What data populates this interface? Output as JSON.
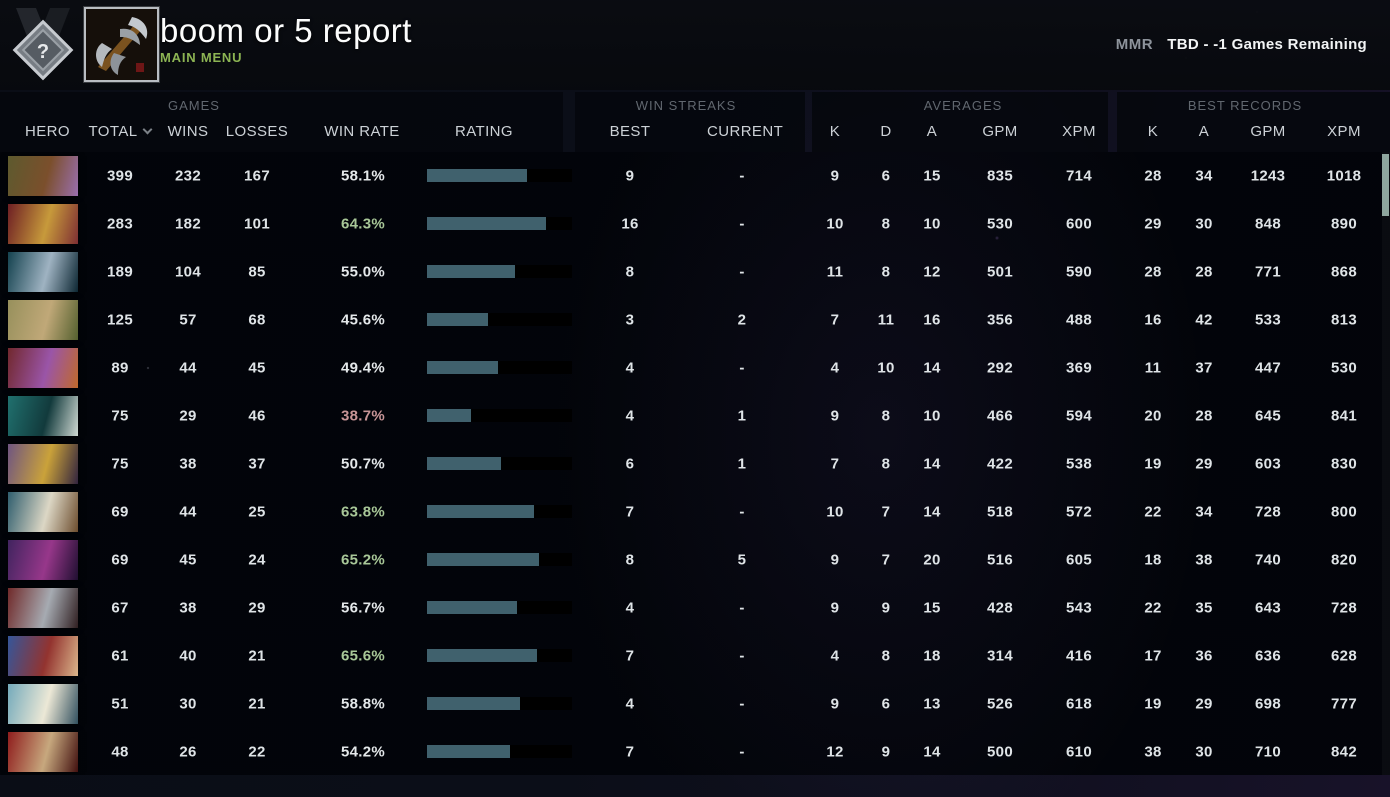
{
  "topbar": {
    "title": "boom or 5 report",
    "subtitle": "MAIN MENU",
    "rank_glyph": "?",
    "mmr_label": "MMR",
    "mmr_value": "TBD - -1 Games Remaining"
  },
  "header": {
    "groups": {
      "games": "GAMES",
      "streaks": "WIN STREAKS",
      "averages": "AVERAGES",
      "records": "BEST RECORDS"
    },
    "columns": {
      "hero": "HERO",
      "total": "TOTAL",
      "wins": "WINS",
      "losses": "LOSSES",
      "win_rate": "WIN RATE",
      "rating": "RATING",
      "best": "BEST",
      "current": "CURRENT",
      "k": "K",
      "d": "D",
      "a": "A",
      "gpm": "GPM",
      "xpm": "XPM"
    }
  },
  "colors": {
    "accent_green": "#8cb453",
    "bar_fill": "#40616d",
    "win_rate_good": "#a8c798",
    "win_rate_bad": "#c79597",
    "text": "#dfe4e7",
    "muted": "#61676f",
    "scroll_thumb": "#8ea69e"
  },
  "table": {
    "rows": [
      {
        "portrait": [
          "#5d5a2e",
          "#7b4f2c",
          "#9a6fae"
        ],
        "total": "399",
        "wins": "232",
        "losses": "167",
        "win_rate": "58.1%",
        "win_rate_tone": "neutral",
        "rating_fill": 0.69,
        "streak_best": "9",
        "streak_current": "-",
        "avg_k": "9",
        "avg_d": "6",
        "avg_a": "15",
        "avg_gpm": "835",
        "avg_xpm": "714",
        "rec_k": "28",
        "rec_a": "34",
        "rec_gpm": "1243",
        "rec_xpm": "1018"
      },
      {
        "portrait": [
          "#6e1f24",
          "#c79a3b",
          "#7e2f33"
        ],
        "total": "283",
        "wins": "182",
        "losses": "101",
        "win_rate": "64.3%",
        "win_rate_tone": "good",
        "rating_fill": 0.82,
        "streak_best": "16",
        "streak_current": "-",
        "avg_k": "10",
        "avg_d": "8",
        "avg_a": "10",
        "avg_gpm": "530",
        "avg_xpm": "600",
        "rec_k": "29",
        "rec_a": "30",
        "rec_gpm": "848",
        "rec_xpm": "890"
      },
      {
        "portrait": [
          "#14424f",
          "#9fb3c2",
          "#0d2733"
        ],
        "total": "189",
        "wins": "104",
        "losses": "85",
        "win_rate": "55.0%",
        "win_rate_tone": "neutral",
        "rating_fill": 0.61,
        "streak_best": "8",
        "streak_current": "-",
        "avg_k": "11",
        "avg_d": "8",
        "avg_a": "12",
        "avg_gpm": "501",
        "avg_xpm": "590",
        "rec_k": "28",
        "rec_a": "28",
        "rec_gpm": "771",
        "rec_xpm": "868"
      },
      {
        "portrait": [
          "#97905c",
          "#c0a878",
          "#55602f"
        ],
        "total": "125",
        "wins": "57",
        "losses": "68",
        "win_rate": "45.6%",
        "win_rate_tone": "neutral",
        "rating_fill": 0.42,
        "streak_best": "3",
        "streak_current": "2",
        "avg_k": "7",
        "avg_d": "11",
        "avg_a": "16",
        "avg_gpm": "356",
        "avg_xpm": "488",
        "rec_k": "16",
        "rec_a": "42",
        "rec_gpm": "533",
        "rec_xpm": "813"
      },
      {
        "portrait": [
          "#71282e",
          "#9a55a8",
          "#c06a2c"
        ],
        "total": "89",
        "wins": "44",
        "losses": "45",
        "win_rate": "49.4%",
        "win_rate_tone": "neutral",
        "rating_fill": 0.49,
        "streak_best": "4",
        "streak_current": "-",
        "avg_k": "4",
        "avg_d": "10",
        "avg_a": "14",
        "avg_gpm": "292",
        "avg_xpm": "369",
        "rec_k": "11",
        "rec_a": "37",
        "rec_gpm": "447",
        "rec_xpm": "530"
      },
      {
        "portrait": [
          "#20706e",
          "#123a3c",
          "#cfd8d2"
        ],
        "total": "75",
        "wins": "29",
        "losses": "46",
        "win_rate": "38.7%",
        "win_rate_tone": "bad",
        "rating_fill": 0.3,
        "streak_best": "4",
        "streak_current": "1",
        "avg_k": "9",
        "avg_d": "8",
        "avg_a": "10",
        "avg_gpm": "466",
        "avg_xpm": "594",
        "rec_k": "20",
        "rec_a": "28",
        "rec_gpm": "645",
        "rec_xpm": "841"
      },
      {
        "portrait": [
          "#6f5581",
          "#caa23a",
          "#32243e"
        ],
        "total": "75",
        "wins": "38",
        "losses": "37",
        "win_rate": "50.7%",
        "win_rate_tone": "neutral",
        "rating_fill": 0.51,
        "streak_best": "6",
        "streak_current": "1",
        "avg_k": "7",
        "avg_d": "8",
        "avg_a": "14",
        "avg_gpm": "422",
        "avg_xpm": "538",
        "rec_k": "19",
        "rec_a": "29",
        "rec_gpm": "603",
        "rec_xpm": "830"
      },
      {
        "portrait": [
          "#2f5e6e",
          "#dcd7c5",
          "#6d4d2e"
        ],
        "total": "69",
        "wins": "44",
        "losses": "25",
        "win_rate": "63.8%",
        "win_rate_tone": "good",
        "rating_fill": 0.74,
        "streak_best": "7",
        "streak_current": "-",
        "avg_k": "10",
        "avg_d": "7",
        "avg_a": "14",
        "avg_gpm": "518",
        "avg_xpm": "572",
        "rec_k": "22",
        "rec_a": "34",
        "rec_gpm": "728",
        "rec_xpm": "800"
      },
      {
        "portrait": [
          "#41245f",
          "#97378a",
          "#200f31"
        ],
        "total": "69",
        "wins": "45",
        "losses": "24",
        "win_rate": "65.2%",
        "win_rate_tone": "good",
        "rating_fill": 0.77,
        "streak_best": "8",
        "streak_current": "5",
        "avg_k": "9",
        "avg_d": "7",
        "avg_a": "20",
        "avg_gpm": "516",
        "avg_xpm": "605",
        "rec_k": "18",
        "rec_a": "38",
        "rec_gpm": "740",
        "rec_xpm": "820"
      },
      {
        "portrait": [
          "#702a2a",
          "#a6abb2",
          "#301f21"
        ],
        "total": "67",
        "wins": "38",
        "losses": "29",
        "win_rate": "56.7%",
        "win_rate_tone": "neutral",
        "rating_fill": 0.62,
        "streak_best": "4",
        "streak_current": "-",
        "avg_k": "9",
        "avg_d": "9",
        "avg_a": "15",
        "avg_gpm": "428",
        "avg_xpm": "543",
        "rec_k": "22",
        "rec_a": "35",
        "rec_gpm": "643",
        "rec_xpm": "728"
      },
      {
        "portrait": [
          "#35569a",
          "#93332f",
          "#dbb68c"
        ],
        "total": "61",
        "wins": "40",
        "losses": "21",
        "win_rate": "65.6%",
        "win_rate_tone": "good",
        "rating_fill": 0.76,
        "streak_best": "7",
        "streak_current": "-",
        "avg_k": "4",
        "avg_d": "8",
        "avg_a": "18",
        "avg_gpm": "314",
        "avg_xpm": "416",
        "rec_k": "17",
        "rec_a": "36",
        "rec_gpm": "636",
        "rec_xpm": "628"
      },
      {
        "portrait": [
          "#74aabb",
          "#ece8d6",
          "#32505f"
        ],
        "total": "51",
        "wins": "30",
        "losses": "21",
        "win_rate": "58.8%",
        "win_rate_tone": "neutral",
        "rating_fill": 0.64,
        "streak_best": "4",
        "streak_current": "-",
        "avg_k": "9",
        "avg_d": "6",
        "avg_a": "13",
        "avg_gpm": "526",
        "avg_xpm": "618",
        "rec_k": "19",
        "rec_a": "29",
        "rec_gpm": "698",
        "rec_xpm": "777"
      },
      {
        "portrait": [
          "#8f1d1d",
          "#c7a87e",
          "#42100f"
        ],
        "total": "48",
        "wins": "26",
        "losses": "22",
        "win_rate": "54.2%",
        "win_rate_tone": "neutral",
        "rating_fill": 0.57,
        "streak_best": "7",
        "streak_current": "-",
        "avg_k": "12",
        "avg_d": "9",
        "avg_a": "14",
        "avg_gpm": "500",
        "avg_xpm": "610",
        "rec_k": "38",
        "rec_a": "30",
        "rec_gpm": "710",
        "rec_xpm": "842"
      }
    ]
  }
}
